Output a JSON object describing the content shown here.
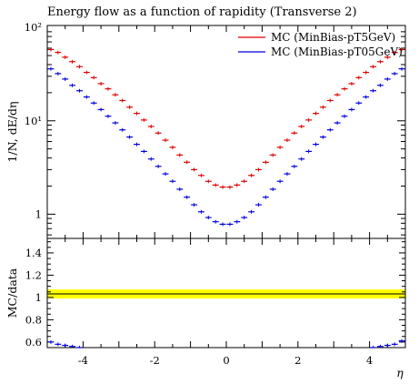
{
  "chart_data": {
    "type": "scatter",
    "title": "Energy flow as a function of rapidity (Transverse 2)",
    "xlabel": "η",
    "ylabel": "1/N, dE/dη",
    "ratio_ylabel": "MC/data",
    "xlim": [
      -5,
      5
    ],
    "ylim": [
      0.55,
      105
    ],
    "yscale": "log",
    "ratio_ylim": [
      0.55,
      1.53
    ],
    "legend_position": "top-right",
    "x_ticks": [
      {
        "v": -4,
        "label": "-4"
      },
      {
        "v": -2,
        "label": "-2"
      },
      {
        "v": 0,
        "label": "0"
      },
      {
        "v": 2,
        "label": "2"
      },
      {
        "v": 4,
        "label": "4"
      }
    ],
    "y_ticks": [
      {
        "v": 1,
        "label": "1"
      },
      {
        "v": 10,
        "label": "10¹"
      },
      {
        "v": 100,
        "label": "10²"
      }
    ],
    "ratio_y_ticks": [
      {
        "v": 0.6,
        "label": "0.6"
      },
      {
        "v": 0.8,
        "label": "0.8"
      },
      {
        "v": 1.0,
        "label": "1"
      },
      {
        "v": 1.2,
        "label": "1.2"
      },
      {
        "v": 1.4,
        "label": "1.4"
      }
    ],
    "x": [
      -4.9,
      -4.7,
      -4.5,
      -4.3,
      -4.1,
      -3.9,
      -3.7,
      -3.5,
      -3.3,
      -3.1,
      -2.9,
      -2.7,
      -2.5,
      -2.3,
      -2.1,
      -1.9,
      -1.7,
      -1.5,
      -1.3,
      -1.1,
      -0.9,
      -0.7,
      -0.5,
      -0.3,
      -0.1,
      0.1,
      0.3,
      0.5,
      0.7,
      0.9,
      1.1,
      1.3,
      1.5,
      1.7,
      1.9,
      2.1,
      2.3,
      2.5,
      2.7,
      2.9,
      3.1,
      3.3,
      3.5,
      3.7,
      3.9,
      4.1,
      4.3,
      4.5,
      4.7,
      4.9
    ],
    "series": [
      {
        "name": "MC (MinBias-pT5GeV)",
        "color": "#dd0000",
        "values": [
          58,
          54,
          48,
          43,
          38,
          33,
          29,
          25,
          22,
          19,
          16.5,
          14,
          12,
          10.2,
          8.7,
          7.4,
          6.2,
          5.2,
          4.3,
          3.6,
          3.0,
          2.6,
          2.25,
          2.05,
          1.95,
          1.95,
          2.05,
          2.25,
          2.6,
          3.0,
          3.6,
          4.3,
          5.2,
          6.2,
          7.4,
          8.7,
          10.2,
          12,
          14,
          16.5,
          19,
          22,
          25,
          29,
          33,
          38,
          43,
          48,
          54,
          58
        ]
      },
      {
        "name": "MC (MinBias-pT05GeV)",
        "color": "#0000dd",
        "values": [
          36,
          32,
          28,
          24,
          21,
          18,
          15.5,
          13.2,
          11.2,
          9.5,
          8.0,
          6.7,
          5.6,
          4.7,
          3.9,
          3.25,
          2.7,
          2.25,
          1.85,
          1.52,
          1.26,
          1.06,
          0.92,
          0.83,
          0.78,
          0.78,
          0.83,
          0.92,
          1.06,
          1.26,
          1.52,
          1.85,
          2.25,
          2.7,
          3.25,
          3.9,
          4.7,
          5.6,
          6.7,
          8.0,
          9.5,
          11.2,
          13.2,
          15.5,
          18,
          21,
          24,
          28,
          32,
          36
        ]
      }
    ],
    "ratio_series": [
      {
        "name": "MC (MinBias-pT05GeV) / data",
        "color": "#0000dd",
        "values": [
          0.6,
          0.58,
          0.57,
          0.56,
          0.55,
          0.545,
          0.54,
          0.535,
          0.53,
          0.53,
          0.525,
          0.52,
          0.52,
          0.52,
          0.515,
          0.515,
          0.51,
          0.51,
          0.51,
          0.51,
          0.51,
          0.51,
          0.51,
          0.51,
          0.51,
          0.51,
          0.51,
          0.51,
          0.51,
          0.51,
          0.51,
          0.51,
          0.51,
          0.51,
          0.515,
          0.515,
          0.52,
          0.52,
          0.52,
          0.525,
          0.53,
          0.53,
          0.535,
          0.54,
          0.545,
          0.55,
          0.56,
          0.57,
          0.58,
          0.61
        ]
      }
    ]
  }
}
